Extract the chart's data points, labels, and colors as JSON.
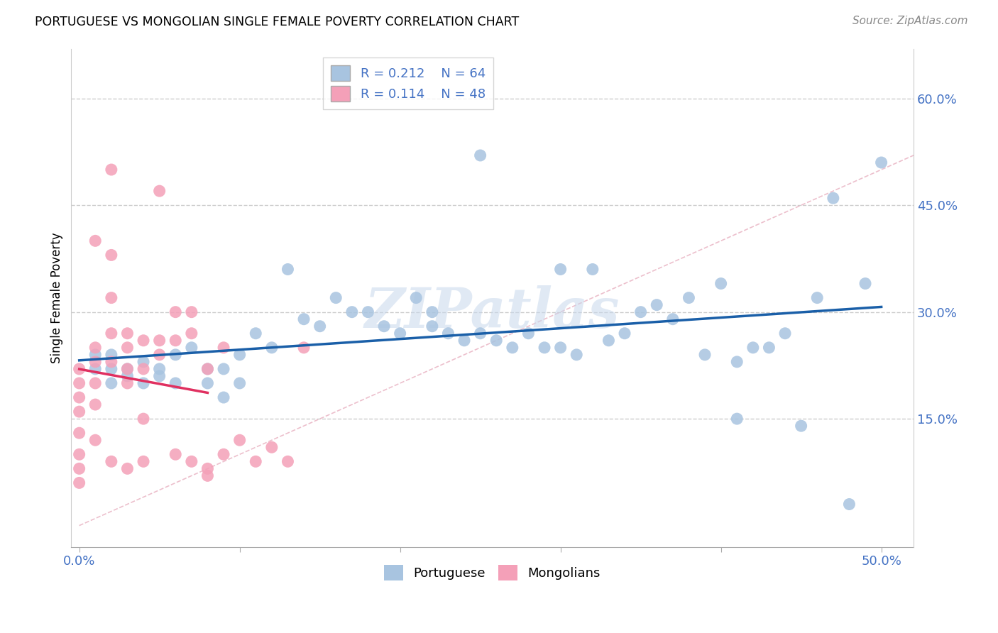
{
  "title": "PORTUGUESE VS MONGOLIAN SINGLE FEMALE POVERTY CORRELATION CHART",
  "source": "Source: ZipAtlas.com",
  "ylabel": "Single Female Poverty",
  "x_tick_labels_ends": [
    "0.0%",
    "50.0%"
  ],
  "x_ticks": [
    0.0,
    0.1,
    0.2,
    0.3,
    0.4,
    0.5
  ],
  "y_tick_labels_right": [
    "60.0%",
    "45.0%",
    "30.0%",
    "15.0%"
  ],
  "y_ticks_right": [
    0.6,
    0.45,
    0.3,
    0.15
  ],
  "xlim": [
    -0.005,
    0.52
  ],
  "ylim": [
    -0.03,
    0.67
  ],
  "portuguese_R": "0.212",
  "portuguese_N": "64",
  "mongolian_R": "0.114",
  "mongolian_N": "48",
  "portuguese_color": "#a8c4e0",
  "mongolian_color": "#f4a0b8",
  "portuguese_line_color": "#1a5fa8",
  "mongolian_line_color": "#e03060",
  "diagonal_color": "#cccccc",
  "watermark": "ZIPatlas",
  "portuguese_x": [
    0.01,
    0.01,
    0.02,
    0.02,
    0.02,
    0.03,
    0.03,
    0.04,
    0.04,
    0.05,
    0.05,
    0.06,
    0.06,
    0.07,
    0.08,
    0.08,
    0.09,
    0.09,
    0.1,
    0.1,
    0.11,
    0.12,
    0.13,
    0.14,
    0.15,
    0.16,
    0.17,
    0.18,
    0.19,
    0.2,
    0.21,
    0.22,
    0.22,
    0.23,
    0.24,
    0.25,
    0.26,
    0.27,
    0.28,
    0.29,
    0.3,
    0.3,
    0.31,
    0.32,
    0.33,
    0.34,
    0.35,
    0.36,
    0.37,
    0.38,
    0.39,
    0.4,
    0.41,
    0.42,
    0.43,
    0.44,
    0.45,
    0.46,
    0.47,
    0.48,
    0.49,
    0.5,
    0.41,
    0.25
  ],
  "portuguese_y": [
    0.22,
    0.24,
    0.22,
    0.2,
    0.24,
    0.22,
    0.21,
    0.23,
    0.2,
    0.22,
    0.21,
    0.24,
    0.2,
    0.25,
    0.22,
    0.2,
    0.22,
    0.18,
    0.24,
    0.2,
    0.27,
    0.25,
    0.36,
    0.29,
    0.28,
    0.32,
    0.3,
    0.3,
    0.28,
    0.27,
    0.32,
    0.28,
    0.3,
    0.27,
    0.26,
    0.27,
    0.26,
    0.25,
    0.27,
    0.25,
    0.25,
    0.36,
    0.24,
    0.36,
    0.26,
    0.27,
    0.3,
    0.31,
    0.29,
    0.32,
    0.24,
    0.34,
    0.23,
    0.25,
    0.25,
    0.27,
    0.14,
    0.32,
    0.46,
    0.03,
    0.34,
    0.51,
    0.15,
    0.52
  ],
  "mongolian_x": [
    0.0,
    0.0,
    0.0,
    0.0,
    0.0,
    0.0,
    0.0,
    0.0,
    0.01,
    0.01,
    0.01,
    0.01,
    0.01,
    0.02,
    0.02,
    0.02,
    0.02,
    0.02,
    0.03,
    0.03,
    0.03,
    0.03,
    0.04,
    0.04,
    0.04,
    0.05,
    0.05,
    0.06,
    0.06,
    0.07,
    0.07,
    0.08,
    0.08,
    0.09,
    0.09,
    0.1,
    0.11,
    0.12,
    0.13,
    0.14,
    0.01,
    0.02,
    0.03,
    0.04,
    0.05,
    0.06,
    0.07,
    0.08
  ],
  "mongolian_y": [
    0.22,
    0.2,
    0.18,
    0.16,
    0.13,
    0.1,
    0.08,
    0.06,
    0.25,
    0.23,
    0.2,
    0.17,
    0.12,
    0.5,
    0.38,
    0.27,
    0.23,
    0.09,
    0.27,
    0.25,
    0.22,
    0.08,
    0.26,
    0.22,
    0.09,
    0.47,
    0.26,
    0.3,
    0.1,
    0.3,
    0.27,
    0.22,
    0.08,
    0.25,
    0.1,
    0.12,
    0.09,
    0.11,
    0.09,
    0.25,
    0.4,
    0.32,
    0.2,
    0.15,
    0.24,
    0.26,
    0.09,
    0.07
  ]
}
